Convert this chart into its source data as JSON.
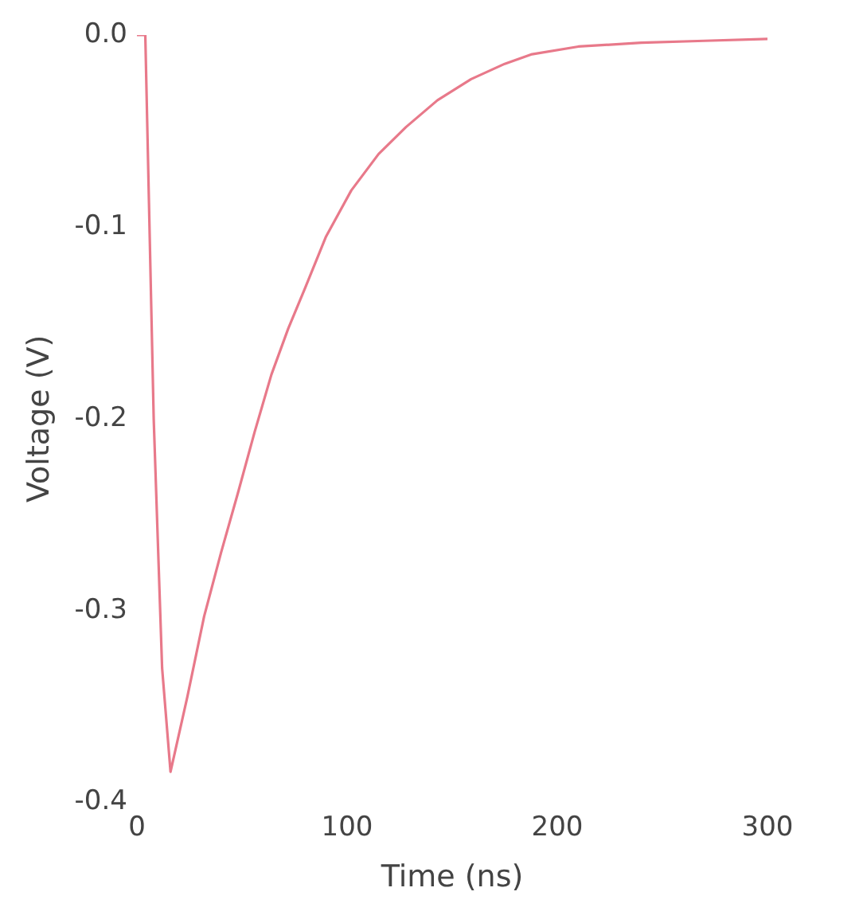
{
  "chart_data": {
    "type": "line",
    "xlabel": "Time (ns)",
    "ylabel": "Voltage (V)",
    "xlim": [
      0,
      300
    ],
    "ylim": [
      -0.4,
      0
    ],
    "xticks": [
      0,
      100,
      200,
      300
    ],
    "yticks": [
      {
        "value": 0,
        "label": "0.0"
      },
      -0.1,
      -0.2,
      -0.3,
      -0.4
    ],
    "grid": false,
    "legend": false,
    "marker": "none",
    "line_style": "solid",
    "series": [
      {
        "color": "#e8798a",
        "x": [
          0,
          1,
          2,
          4,
          8,
          12,
          16,
          24,
          32,
          40,
          48,
          56,
          64,
          72,
          80,
          90,
          102,
          115,
          128,
          143,
          159,
          175,
          188,
          210,
          240,
          270,
          300
        ],
        "values": [
          0,
          0,
          0,
          0,
          -0.2,
          -0.33,
          -0.384,
          -0.345,
          -0.303,
          -0.27,
          -0.239,
          -0.207,
          -0.177,
          -0.153,
          -0.132,
          -0.105,
          -0.081,
          -0.062,
          -0.048,
          -0.034,
          -0.023,
          -0.015,
          -0.01,
          -0.006,
          -0.004,
          -0.003,
          -0.002
        ]
      }
    ]
  }
}
